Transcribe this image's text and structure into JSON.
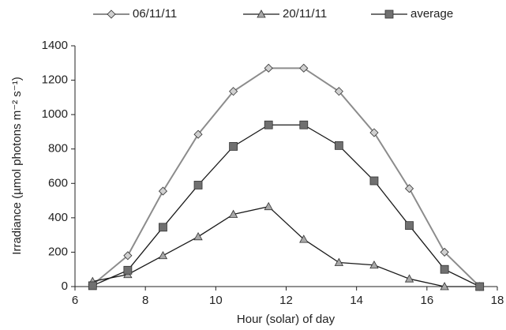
{
  "chart_data": {
    "type": "line",
    "x_label": "Hour (solar) of day",
    "y_label": "Irradiance (µmol photons m⁻² s⁻¹)",
    "x": [
      6.5,
      7.5,
      8.5,
      9.5,
      10.5,
      11.5,
      12.5,
      13.5,
      14.5,
      15.5,
      16.5,
      17.5
    ],
    "series": [
      {
        "name": "06/11/11",
        "color": "#d0d0d0",
        "line_color": "#8c8c8c",
        "marker": "diamond",
        "values": [
          10,
          180,
          555,
          885,
          1135,
          1270,
          1270,
          1135,
          895,
          570,
          200,
          0
        ]
      },
      {
        "name": "20/11/11",
        "color": "#a8a8a8",
        "line_color": "#1a1a1a",
        "marker": "triangle",
        "values": [
          30,
          70,
          180,
          290,
          420,
          465,
          275,
          140,
          125,
          45,
          0,
          0
        ]
      },
      {
        "name": "average",
        "color": "#707070",
        "line_color": "#1a1a1a",
        "marker": "square",
        "values": [
          5,
          95,
          345,
          590,
          815,
          940,
          940,
          820,
          615,
          355,
          100,
          0
        ]
      }
    ],
    "xlim": [
      6,
      18
    ],
    "xticks": [
      6,
      8,
      10,
      12,
      14,
      16,
      18
    ],
    "ylim": [
      0,
      1400
    ],
    "yticks": [
      0,
      200,
      400,
      600,
      800,
      1000,
      1200,
      1400
    ],
    "grid": false,
    "legend": "top"
  }
}
